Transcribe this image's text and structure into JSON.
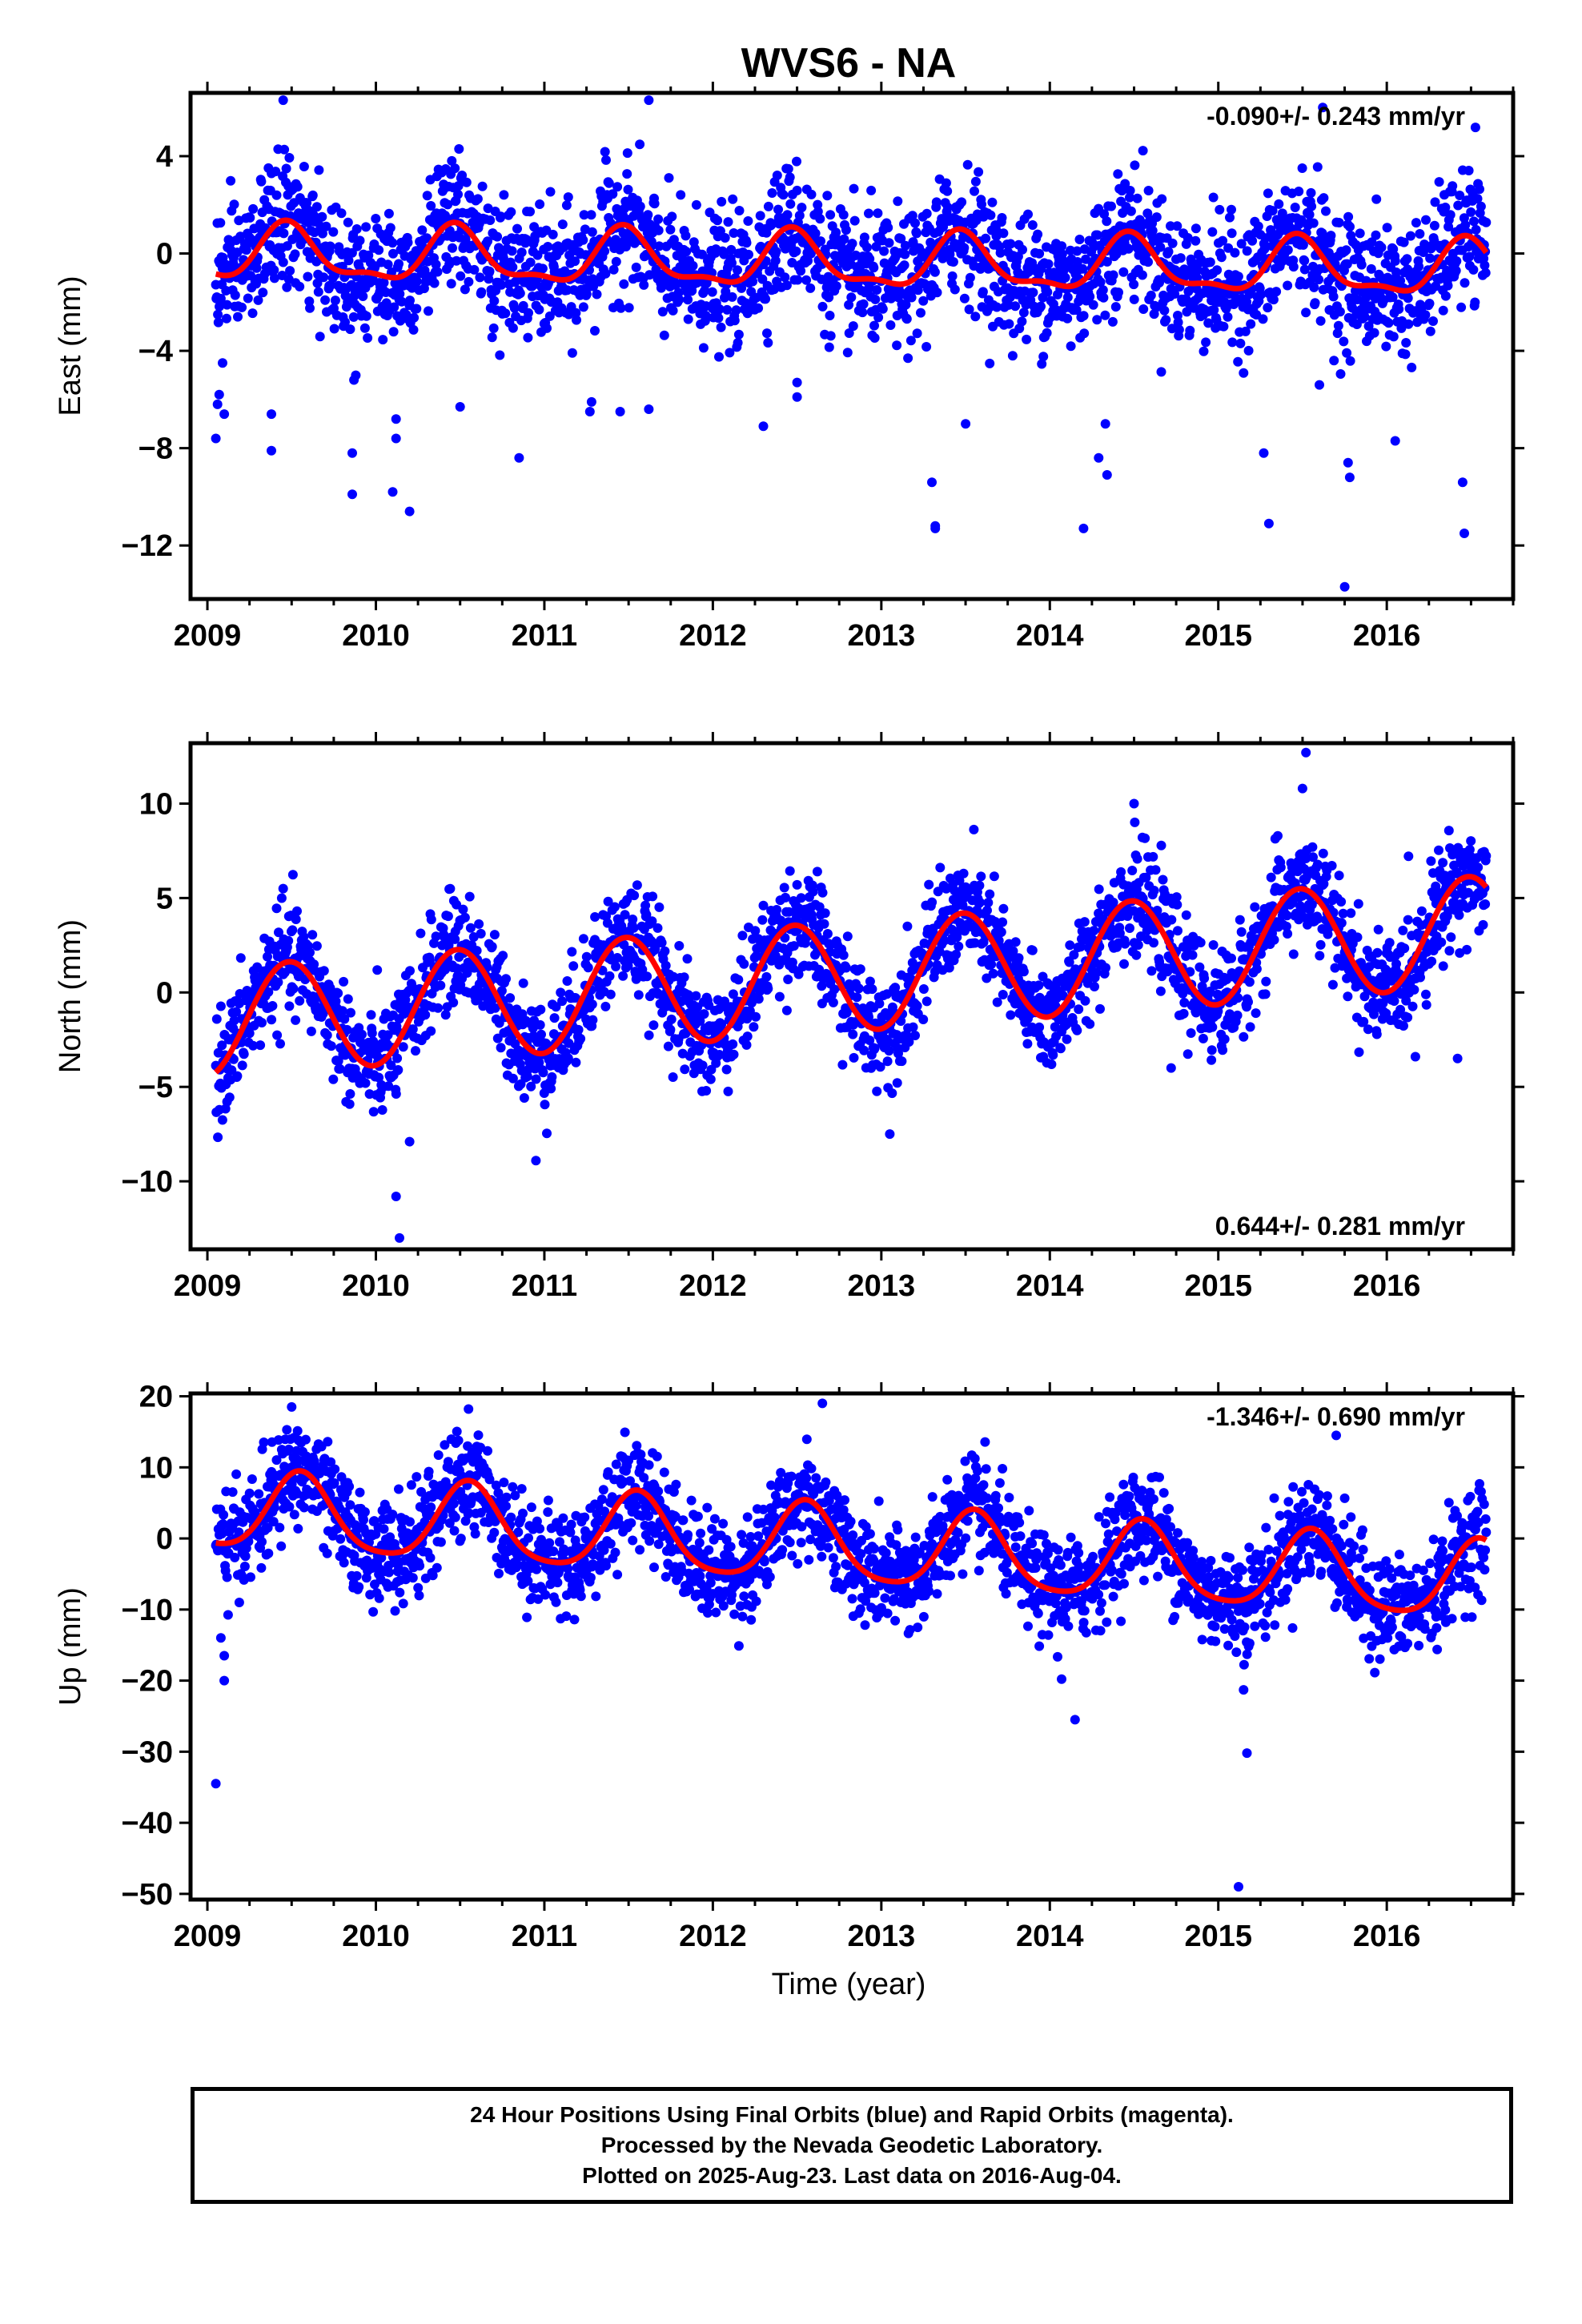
{
  "figure": {
    "title": "WVS6 - NA",
    "xlabel": "Time (year)",
    "caption": [
      "24 Hour Positions Using Final Orbits (blue) and Rapid Orbits (magenta).",
      "Processed by the Nevada Geodetic Laboratory.",
      "Plotted on 2025-Aug-23. Last data on 2016-Aug-04."
    ],
    "colors": {
      "points": "#0000ff",
      "model": "#ff0000",
      "axes": "#000000"
    }
  },
  "chart_data": [
    {
      "type": "scatter",
      "name": "east",
      "ylabel": "East (mm)",
      "rate_label": "-0.090+/- 0.243 mm/yr",
      "rate_position": "top-right",
      "xlim": [
        2008.9,
        2016.75
      ],
      "ylim": [
        -14.2,
        6.6
      ],
      "x_ticks": [
        2009,
        2010,
        2011,
        2012,
        2013,
        2014,
        2015,
        2016
      ],
      "y_ticks": [
        4,
        0,
        -4,
        -8,
        -12
      ],
      "series": [
        {
          "kind": "daily_positions",
          "x_range": [
            2009.05,
            2016.59
          ],
          "density_per_year": 330,
          "noise_sd": 1.3,
          "model_terms": {
            "offset": -0.05,
            "rate": -0.09,
            "annual_cos": -1.05,
            "annual_sin": 0.15,
            "semiannual_cos": 0.35,
            "semiannual_sin": -0.2
          },
          "outliers": [
            [
              2009.05,
              -7.6
            ],
            [
              2009.06,
              -6.2
            ],
            [
              2009.07,
              -5.8
            ],
            [
              2009.09,
              -4.5
            ],
            [
              2009.1,
              -6.6
            ],
            [
              2009.38,
              -8.1
            ],
            [
              2009.38,
              -6.6
            ],
            [
              2009.45,
              6.3
            ],
            [
              2009.86,
              -8.2
            ],
            [
              2009.86,
              -9.9
            ],
            [
              2009.87,
              -5.2
            ],
            [
              2010.1,
              -9.8
            ],
            [
              2010.12,
              -6.8
            ],
            [
              2010.12,
              -7.6
            ],
            [
              2010.2,
              -10.6
            ],
            [
              2010.5,
              -6.3
            ],
            [
              2010.85,
              -8.4
            ],
            [
              2011.28,
              -6.1
            ],
            [
              2011.27,
              -6.5
            ],
            [
              2011.45,
              -6.5
            ],
            [
              2011.62,
              6.3
            ],
            [
              2011.62,
              -6.4
            ],
            [
              2012.3,
              -7.1
            ],
            [
              2012.5,
              -5.9
            ],
            [
              2012.5,
              -5.3
            ],
            [
              2013.3,
              -9.4
            ],
            [
              2013.32,
              -11.2
            ],
            [
              2013.32,
              -11.3
            ],
            [
              2013.5,
              -7.0
            ],
            [
              2014.2,
              -11.3
            ],
            [
              2014.29,
              -8.4
            ],
            [
              2014.33,
              -7.0
            ],
            [
              2014.34,
              -9.1
            ],
            [
              2015.27,
              -8.2
            ],
            [
              2015.3,
              -11.1
            ],
            [
              2015.6,
              -5.4
            ],
            [
              2015.75,
              -13.7
            ],
            [
              2015.78,
              -9.2
            ],
            [
              2015.77,
              -8.6
            ],
            [
              2016.05,
              -7.7
            ],
            [
              2016.45,
              -9.4
            ],
            [
              2016.46,
              -11.5
            ],
            [
              2015.62,
              6.0
            ]
          ]
        }
      ]
    },
    {
      "type": "scatter",
      "name": "north",
      "ylabel": "North (mm)",
      "rate_label": "0.644+/- 0.281 mm/yr",
      "rate_position": "bottom-right",
      "xlim": [
        2008.9,
        2016.75
      ],
      "ylim": [
        -13.6,
        13.2
      ],
      "x_ticks": [
        2009,
        2010,
        2011,
        2012,
        2013,
        2014,
        2015,
        2016
      ],
      "y_ticks": [
        10,
        5,
        0,
        -5,
        -10
      ],
      "series": [
        {
          "kind": "daily_positions",
          "x_range": [
            2009.05,
            2016.59
          ],
          "density_per_year": 330,
          "noise_sd": 1.4,
          "model_terms": {
            "offset": -1.6,
            "rate": 0.644,
            "annual_cos": -2.9,
            "annual_sin": 0.3,
            "semiannual_cos": 0.0,
            "semiannual_sin": 0.0
          },
          "outliers": [
            [
              2009.45,
              5.5
            ],
            [
              2010.12,
              -10.8
            ],
            [
              2010.14,
              -13.0
            ],
            [
              2010.2,
              -7.9
            ],
            [
              2011.3,
              4.0
            ],
            [
              2012.5,
              5.7
            ],
            [
              2012.62,
              6.4
            ],
            [
              2014.5,
              10.0
            ],
            [
              2015.52,
              12.7
            ],
            [
              2015.5,
              10.8
            ],
            [
              2014.72,
              -4.0
            ],
            [
              2016.17,
              -3.4
            ],
            [
              2016.42,
              -3.5
            ],
            [
              2013.05,
              -7.5
            ],
            [
              2010.95,
              -8.9
            ]
          ]
        }
      ]
    },
    {
      "type": "scatter",
      "name": "up",
      "ylabel": "Up (mm)",
      "rate_label": "-1.346+/- 0.690 mm/yr",
      "rate_position": "top-right",
      "xlim": [
        2008.9,
        2016.75
      ],
      "ylim": [
        -50.8,
        20.4
      ],
      "x_ticks": [
        2009,
        2010,
        2011,
        2012,
        2013,
        2014,
        2015,
        2016
      ],
      "y_ticks": [
        20,
        10,
        0,
        -10,
        -20,
        -30,
        -40,
        -50
      ],
      "series": [
        {
          "kind": "daily_positions",
          "x_range": [
            2009.05,
            2016.59
          ],
          "density_per_year": 330,
          "noise_sd": 3.6,
          "model_terms": {
            "offset": 3.9,
            "rate": -1.346,
            "annual_cos": -5.1,
            "annual_sin": -1.8,
            "semiannual_cos": 0.8,
            "semiannual_sin": 0.5
          },
          "outliers": [
            [
              2009.05,
              -34.5
            ],
            [
              2009.1,
              -20.0
            ],
            [
              2009.1,
              -16.5
            ],
            [
              2009.08,
              -14.0
            ],
            [
              2012.65,
              19.0
            ],
            [
              2014.07,
              -19.8
            ],
            [
              2014.15,
              -25.5
            ],
            [
              2015.12,
              -49.0
            ],
            [
              2015.17,
              -30.2
            ],
            [
              2015.15,
              -21.3
            ],
            [
              2015.7,
              14.5
            ],
            [
              2009.5,
              18.5
            ],
            [
              2010.55,
              18.2
            ]
          ]
        }
      ]
    }
  ]
}
